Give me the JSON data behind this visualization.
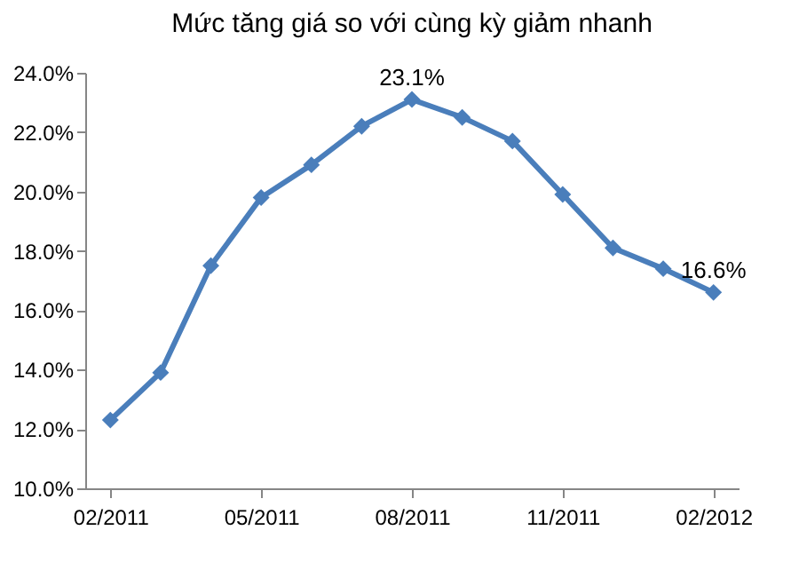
{
  "chart_data": {
    "type": "line",
    "title": "Mức tăng giá so với cùng kỳ giảm nhanh",
    "categories": [
      "02/2011",
      null,
      null,
      "05/2011",
      null,
      null,
      "08/2011",
      null,
      null,
      "11/2011",
      null,
      null,
      "02/2012"
    ],
    "series": [
      {
        "color": "#4a7ebb",
        "values": [
          12.3,
          13.9,
          17.5,
          19.8,
          20.9,
          22.2,
          23.1,
          22.5,
          21.7,
          19.9,
          18.1,
          17.4,
          16.6
        ],
        "value_labels": [
          null,
          null,
          null,
          null,
          null,
          null,
          "23.1%",
          null,
          null,
          null,
          null,
          null,
          "16.6%"
        ]
      }
    ],
    "ylim": [
      10,
      24
    ],
    "yticks": [
      {
        "value": 10,
        "label": "10.0%"
      },
      {
        "value": 12,
        "label": "12.0%"
      },
      {
        "value": 14,
        "label": "14.0%"
      },
      {
        "value": 16,
        "label": "16.0%"
      },
      {
        "value": 18,
        "label": "18.0%"
      },
      {
        "value": 20,
        "label": "20.0%"
      },
      {
        "value": 22,
        "label": "22.0%"
      },
      {
        "value": 24,
        "label": "24.0%"
      }
    ],
    "grid": false,
    "marker": "diamond",
    "line_style": "solid"
  }
}
